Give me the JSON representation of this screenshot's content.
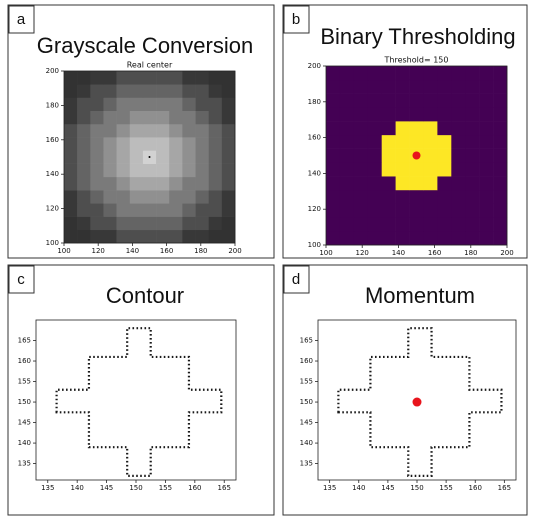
{
  "chart_data": [
    {
      "type": "heatmap",
      "panel_label": "a",
      "heading": "Grayscale Conversion",
      "title": "Real center",
      "xlim": [
        100,
        200
      ],
      "ylim": [
        100,
        200
      ],
      "xticks": [
        100,
        120,
        140,
        160,
        180,
        200
      ],
      "yticks": [
        100,
        120,
        140,
        160,
        180,
        200
      ],
      "colormap": "gray",
      "values": [
        [
          50,
          50,
          56,
          56,
          78,
          78,
          78,
          78,
          78,
          56,
          56,
          50,
          50
        ],
        [
          50,
          56,
          78,
          78,
          100,
          100,
          100,
          100,
          100,
          78,
          78,
          56,
          50
        ],
        [
          56,
          78,
          78,
          100,
          122,
          122,
          122,
          122,
          122,
          100,
          78,
          78,
          56
        ],
        [
          56,
          78,
          100,
          122,
          122,
          144,
          144,
          144,
          122,
          122,
          100,
          78,
          56
        ],
        [
          78,
          100,
          122,
          122,
          144,
          166,
          166,
          166,
          144,
          122,
          122,
          100,
          78
        ],
        [
          78,
          100,
          122,
          144,
          166,
          188,
          188,
          188,
          166,
          144,
          122,
          100,
          78
        ],
        [
          78,
          100,
          122,
          144,
          166,
          188,
          210,
          188,
          166,
          144,
          122,
          100,
          78
        ],
        [
          78,
          100,
          122,
          144,
          166,
          188,
          188,
          188,
          166,
          144,
          122,
          100,
          78
        ],
        [
          78,
          100,
          122,
          122,
          144,
          166,
          166,
          166,
          144,
          122,
          122,
          100,
          78
        ],
        [
          56,
          78,
          100,
          122,
          122,
          144,
          144,
          144,
          122,
          122,
          100,
          78,
          56
        ],
        [
          56,
          78,
          78,
          100,
          122,
          122,
          122,
          122,
          122,
          100,
          78,
          78,
          56
        ],
        [
          50,
          56,
          78,
          78,
          100,
          100,
          100,
          100,
          100,
          78,
          78,
          56,
          50
        ],
        [
          50,
          50,
          56,
          56,
          78,
          78,
          78,
          78,
          78,
          56,
          56,
          50,
          50
        ]
      ],
      "points": {
        "x": [
          150
        ],
        "y": [
          150
        ],
        "color": "#000000",
        "size": 1
      }
    },
    {
      "type": "heatmap",
      "panel_label": "b",
      "heading": "Binary Thresholding",
      "title": "Threshold= 150",
      "xlim": [
        100,
        200
      ],
      "ylim": [
        100,
        200
      ],
      "xticks": [
        100,
        120,
        140,
        160,
        180,
        200
      ],
      "yticks": [
        100,
        120,
        140,
        160,
        180,
        200
      ],
      "colors": [
        "#440154",
        "#fde725"
      ],
      "values": [
        [
          0,
          0,
          0,
          0,
          0,
          0,
          0,
          0,
          0,
          0,
          0,
          0,
          0
        ],
        [
          0,
          0,
          0,
          0,
          0,
          0,
          0,
          0,
          0,
          0,
          0,
          0,
          0
        ],
        [
          0,
          0,
          0,
          0,
          0,
          0,
          0,
          0,
          0,
          0,
          0,
          0,
          0
        ],
        [
          0,
          0,
          0,
          0,
          0,
          0,
          0,
          0,
          0,
          0,
          0,
          0,
          0
        ],
        [
          0,
          0,
          0,
          0,
          0,
          1,
          1,
          1,
          0,
          0,
          0,
          0,
          0
        ],
        [
          0,
          0,
          0,
          0,
          1,
          1,
          1,
          1,
          1,
          0,
          0,
          0,
          0
        ],
        [
          0,
          0,
          0,
          0,
          1,
          1,
          1,
          1,
          1,
          0,
          0,
          0,
          0
        ],
        [
          0,
          0,
          0,
          0,
          1,
          1,
          1,
          1,
          1,
          0,
          0,
          0,
          0
        ],
        [
          0,
          0,
          0,
          0,
          0,
          1,
          1,
          1,
          0,
          0,
          0,
          0,
          0
        ],
        [
          0,
          0,
          0,
          0,
          0,
          0,
          0,
          0,
          0,
          0,
          0,
          0,
          0
        ],
        [
          0,
          0,
          0,
          0,
          0,
          0,
          0,
          0,
          0,
          0,
          0,
          0,
          0
        ],
        [
          0,
          0,
          0,
          0,
          0,
          0,
          0,
          0,
          0,
          0,
          0,
          0,
          0
        ],
        [
          0,
          0,
          0,
          0,
          0,
          0,
          0,
          0,
          0,
          0,
          0,
          0,
          0
        ]
      ],
      "points": {
        "x": [
          150
        ],
        "y": [
          150
        ],
        "color": "#e8141c",
        "size": 4
      }
    },
    {
      "type": "line",
      "panel_label": "c",
      "heading": "Contour",
      "xlim": [
        133,
        167
      ],
      "ylim": [
        131,
        170
      ],
      "xticks": [
        135,
        140,
        145,
        150,
        155,
        160,
        165
      ],
      "yticks": [
        135,
        140,
        145,
        150,
        155,
        160,
        165
      ],
      "color": "#1a1a1a",
      "closed": true,
      "x": [
        136.5,
        136.5,
        142,
        142,
        148.5,
        148.5,
        152.5,
        152.5,
        159,
        159,
        164.5,
        164.5,
        159,
        159,
        152.5,
        152.5,
        148.5,
        148.5,
        142,
        142
      ],
      "y": [
        147.5,
        153,
        153,
        161,
        161,
        168,
        168,
        161,
        161,
        153,
        153,
        147.5,
        147.5,
        139,
        139,
        132,
        132,
        139,
        139,
        147.5
      ]
    },
    {
      "type": "line",
      "panel_label": "d",
      "heading": "Momentum",
      "xlim": [
        133,
        167
      ],
      "ylim": [
        131,
        170
      ],
      "xticks": [
        135,
        140,
        145,
        150,
        155,
        160,
        165
      ],
      "yticks": [
        135,
        140,
        145,
        150,
        155,
        160,
        165
      ],
      "color": "#1a1a1a",
      "closed": true,
      "x": [
        136.5,
        136.5,
        142,
        142,
        148.5,
        148.5,
        152.5,
        152.5,
        159,
        159,
        164.5,
        164.5,
        159,
        159,
        152.5,
        152.5,
        148.5,
        148.5,
        142,
        142
      ],
      "y": [
        147.5,
        153,
        153,
        161,
        161,
        168,
        168,
        161,
        161,
        153,
        153,
        147.5,
        147.5,
        139,
        139,
        132,
        132,
        139,
        139,
        147.5
      ],
      "points": {
        "x": [
          150
        ],
        "y": [
          150
        ],
        "color": "#e8141c",
        "size": 4.5
      }
    }
  ]
}
